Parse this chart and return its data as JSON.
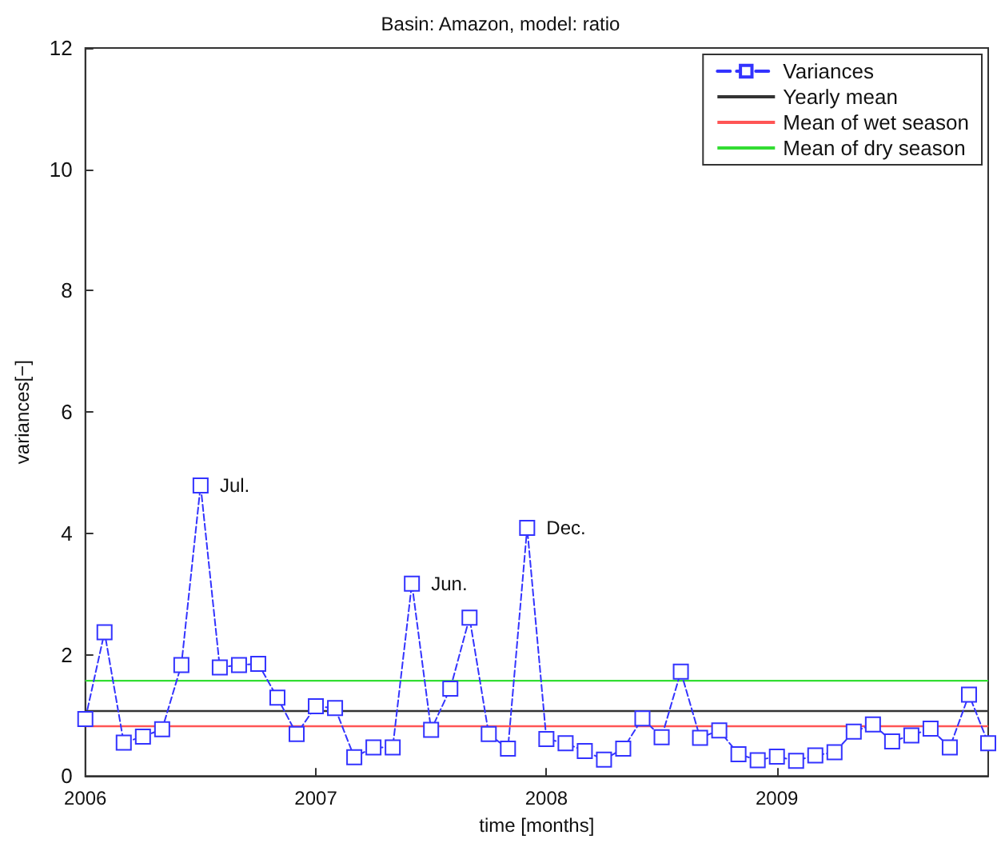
{
  "chart_data": {
    "type": "line",
    "title": "Basin: Amazon, model: ratio",
    "xlabel": "time [months]",
    "ylabel": "variances[−]",
    "x": [
      "2006-01",
      "2006-02",
      "2006-03",
      "2006-04",
      "2006-05",
      "2006-06",
      "2006-07",
      "2006-08",
      "2006-09",
      "2006-10",
      "2006-11",
      "2006-12",
      "2007-01",
      "2007-02",
      "2007-03",
      "2007-04",
      "2007-05",
      "2007-06",
      "2007-07",
      "2007-08",
      "2007-09",
      "2007-10",
      "2007-11",
      "2007-12",
      "2008-01",
      "2008-02",
      "2008-03",
      "2008-04",
      "2008-05",
      "2008-06",
      "2008-07",
      "2008-08",
      "2008-09",
      "2008-10",
      "2008-11",
      "2008-12",
      "2009-01",
      "2009-02",
      "2009-03",
      "2009-04",
      "2009-05",
      "2009-06",
      "2009-07",
      "2009-08",
      "2009-09",
      "2009-10",
      "2009-11",
      "2009-12"
    ],
    "series": [
      {
        "name": "Variances",
        "color": "#3333ff",
        "values": [
          0.94,
          2.37,
          0.55,
          0.65,
          0.77,
          1.83,
          4.79,
          1.79,
          1.83,
          1.85,
          1.29,
          0.69,
          1.15,
          1.12,
          0.31,
          0.47,
          0.47,
          3.17,
          0.76,
          1.44,
          2.61,
          0.69,
          0.45,
          4.09,
          0.61,
          0.54,
          0.41,
          0.27,
          0.45,
          0.95,
          0.64,
          1.72,
          0.63,
          0.75,
          0.36,
          0.26,
          0.32,
          0.25,
          0.34,
          0.39,
          0.73,
          0.85,
          0.57,
          0.67,
          0.78,
          0.47,
          1.34,
          0.54
        ]
      }
    ],
    "ref_lines": [
      {
        "axis": "y",
        "value": 1.07,
        "label": "Yearly mean",
        "color": "#333333"
      },
      {
        "axis": "y",
        "value": 0.82,
        "label": "Mean of wet season",
        "color": "#ff5555"
      },
      {
        "axis": "y",
        "value": 1.57,
        "label": "Mean of dry season",
        "color": "#33dd33"
      }
    ],
    "annotations": [
      {
        "text": "Jul.",
        "x": "2006-07",
        "y": 4.79
      },
      {
        "text": "Jun.",
        "x": "2007-06",
        "y": 3.17
      },
      {
        "text": "Dec.",
        "x": "2007-12",
        "y": 4.09
      }
    ],
    "xlim": [
      "2006-01",
      "2009-12"
    ],
    "xticks": [
      "2006",
      "2007",
      "2008",
      "2009"
    ],
    "ylim": [
      0,
      12
    ],
    "yticks": [
      0,
      2,
      4,
      6,
      8,
      10,
      12
    ],
    "grid": false,
    "legend": "top right",
    "marker": "square",
    "line_style": "dashed"
  }
}
